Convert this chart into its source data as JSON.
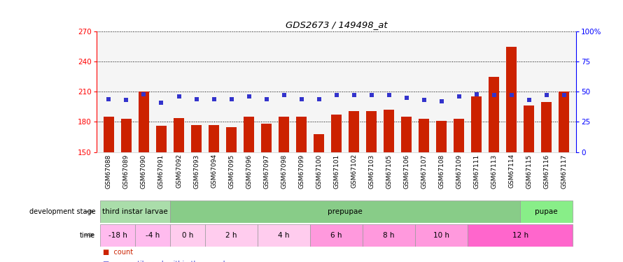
{
  "title": "GDS2673 / 149498_at",
  "samples": [
    "GSM67088",
    "GSM67089",
    "GSM67090",
    "GSM67091",
    "GSM67092",
    "GSM67093",
    "GSM67094",
    "GSM67095",
    "GSM67096",
    "GSM67097",
    "GSM67098",
    "GSM67099",
    "GSM67100",
    "GSM67101",
    "GSM67102",
    "GSM67103",
    "GSM67105",
    "GSM67106",
    "GSM67107",
    "GSM67108",
    "GSM67109",
    "GSM67111",
    "GSM67113",
    "GSM67114",
    "GSM67115",
    "GSM67116",
    "GSM67117"
  ],
  "counts": [
    185,
    183,
    210,
    176,
    184,
    177,
    177,
    175,
    185,
    178,
    185,
    185,
    168,
    187,
    191,
    191,
    192,
    185,
    183,
    181,
    183,
    205,
    225,
    255,
    196,
    200,
    210
  ],
  "percentile": [
    44,
    43,
    48,
    41,
    46,
    44,
    44,
    44,
    46,
    44,
    47,
    44,
    44,
    47,
    47,
    47,
    47,
    45,
    43,
    42,
    46,
    48,
    47,
    47,
    43,
    47,
    47
  ],
  "ylim_left": [
    150,
    270
  ],
  "ylim_right": [
    0,
    100
  ],
  "yticks_left": [
    150,
    180,
    210,
    240,
    270
  ],
  "yticks_right": [
    0,
    25,
    50,
    75,
    100
  ],
  "bar_color": "#cc2200",
  "square_color": "#3333cc",
  "dev_stages": [
    {
      "label": "third instar larvae",
      "start": 0,
      "end": 4,
      "color": "#aaddaa"
    },
    {
      "label": "prepupae",
      "start": 4,
      "end": 24,
      "color": "#88cc88"
    },
    {
      "label": "pupae",
      "start": 24,
      "end": 27,
      "color": "#88ee88"
    }
  ],
  "time_groups": [
    {
      "label": "-18 h",
      "start": 0,
      "end": 2,
      "color": "#ffbbee"
    },
    {
      "label": "-4 h",
      "start": 2,
      "end": 4,
      "color": "#ffbbee"
    },
    {
      "label": "0 h",
      "start": 4,
      "end": 6,
      "color": "#ffccee"
    },
    {
      "label": "2 h",
      "start": 6,
      "end": 9,
      "color": "#ffccee"
    },
    {
      "label": "4 h",
      "start": 9,
      "end": 12,
      "color": "#ffccee"
    },
    {
      "label": "6 h",
      "start": 12,
      "end": 15,
      "color": "#ff99dd"
    },
    {
      "label": "8 h",
      "start": 15,
      "end": 18,
      "color": "#ff99dd"
    },
    {
      "label": "10 h",
      "start": 18,
      "end": 21,
      "color": "#ff99dd"
    },
    {
      "label": "12 h",
      "start": 21,
      "end": 27,
      "color": "#ff66cc"
    }
  ],
  "figsize": [
    8.9,
    3.75
  ],
  "dpi": 100
}
